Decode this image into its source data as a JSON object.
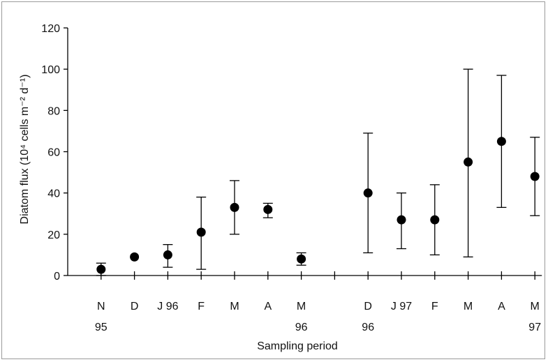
{
  "chart_data": {
    "type": "scatter",
    "title": "",
    "xlabel": "Sampling period",
    "ylabel": "Diatom flux (10⁴ cells m⁻² d⁻¹)",
    "ylim": [
      0,
      120
    ],
    "yticks": [
      0,
      20,
      40,
      60,
      80,
      100,
      120
    ],
    "grid": false,
    "legend": "none",
    "marker_color": "#000000",
    "points": [
      {
        "label": "N",
        "sublabel": "95",
        "y": 3,
        "err_low": 0,
        "err_high": 6,
        "slot": 1
      },
      {
        "label": "D",
        "sublabel": "",
        "y": 9,
        "err_low": 9,
        "err_high": 9,
        "slot": 2
      },
      {
        "label": "J 96",
        "sublabel": "",
        "y": 10,
        "err_low": 4,
        "err_high": 15,
        "slot": 3
      },
      {
        "label": "F",
        "sublabel": "",
        "y": 21,
        "err_low": 3,
        "err_high": 38,
        "slot": 4
      },
      {
        "label": "M",
        "sublabel": "",
        "y": 33,
        "err_low": 20,
        "err_high": 46,
        "slot": 5
      },
      {
        "label": "A",
        "sublabel": "",
        "y": 32,
        "err_low": 28,
        "err_high": 35,
        "slot": 6
      },
      {
        "label": "M",
        "sublabel": "96",
        "y": 8,
        "err_low": 5,
        "err_high": 11,
        "slot": 7
      },
      {
        "label": "D",
        "sublabel": "96",
        "y": 40,
        "err_low": 11,
        "err_high": 69,
        "slot": 9
      },
      {
        "label": "J 97",
        "sublabel": "",
        "y": 27,
        "err_low": 13,
        "err_high": 40,
        "slot": 10
      },
      {
        "label": "F",
        "sublabel": "",
        "y": 27,
        "err_low": 10,
        "err_high": 44,
        "slot": 11
      },
      {
        "label": "M",
        "sublabel": "",
        "y": 55,
        "err_low": 9,
        "err_high": 100,
        "slot": 12
      },
      {
        "label": "A",
        "sublabel": "",
        "y": 65,
        "err_low": 33,
        "err_high": 97,
        "slot": 13
      },
      {
        "label": "M",
        "sublabel": "97",
        "y": 48,
        "err_low": 29,
        "err_high": 67,
        "slot": 14
      }
    ]
  }
}
